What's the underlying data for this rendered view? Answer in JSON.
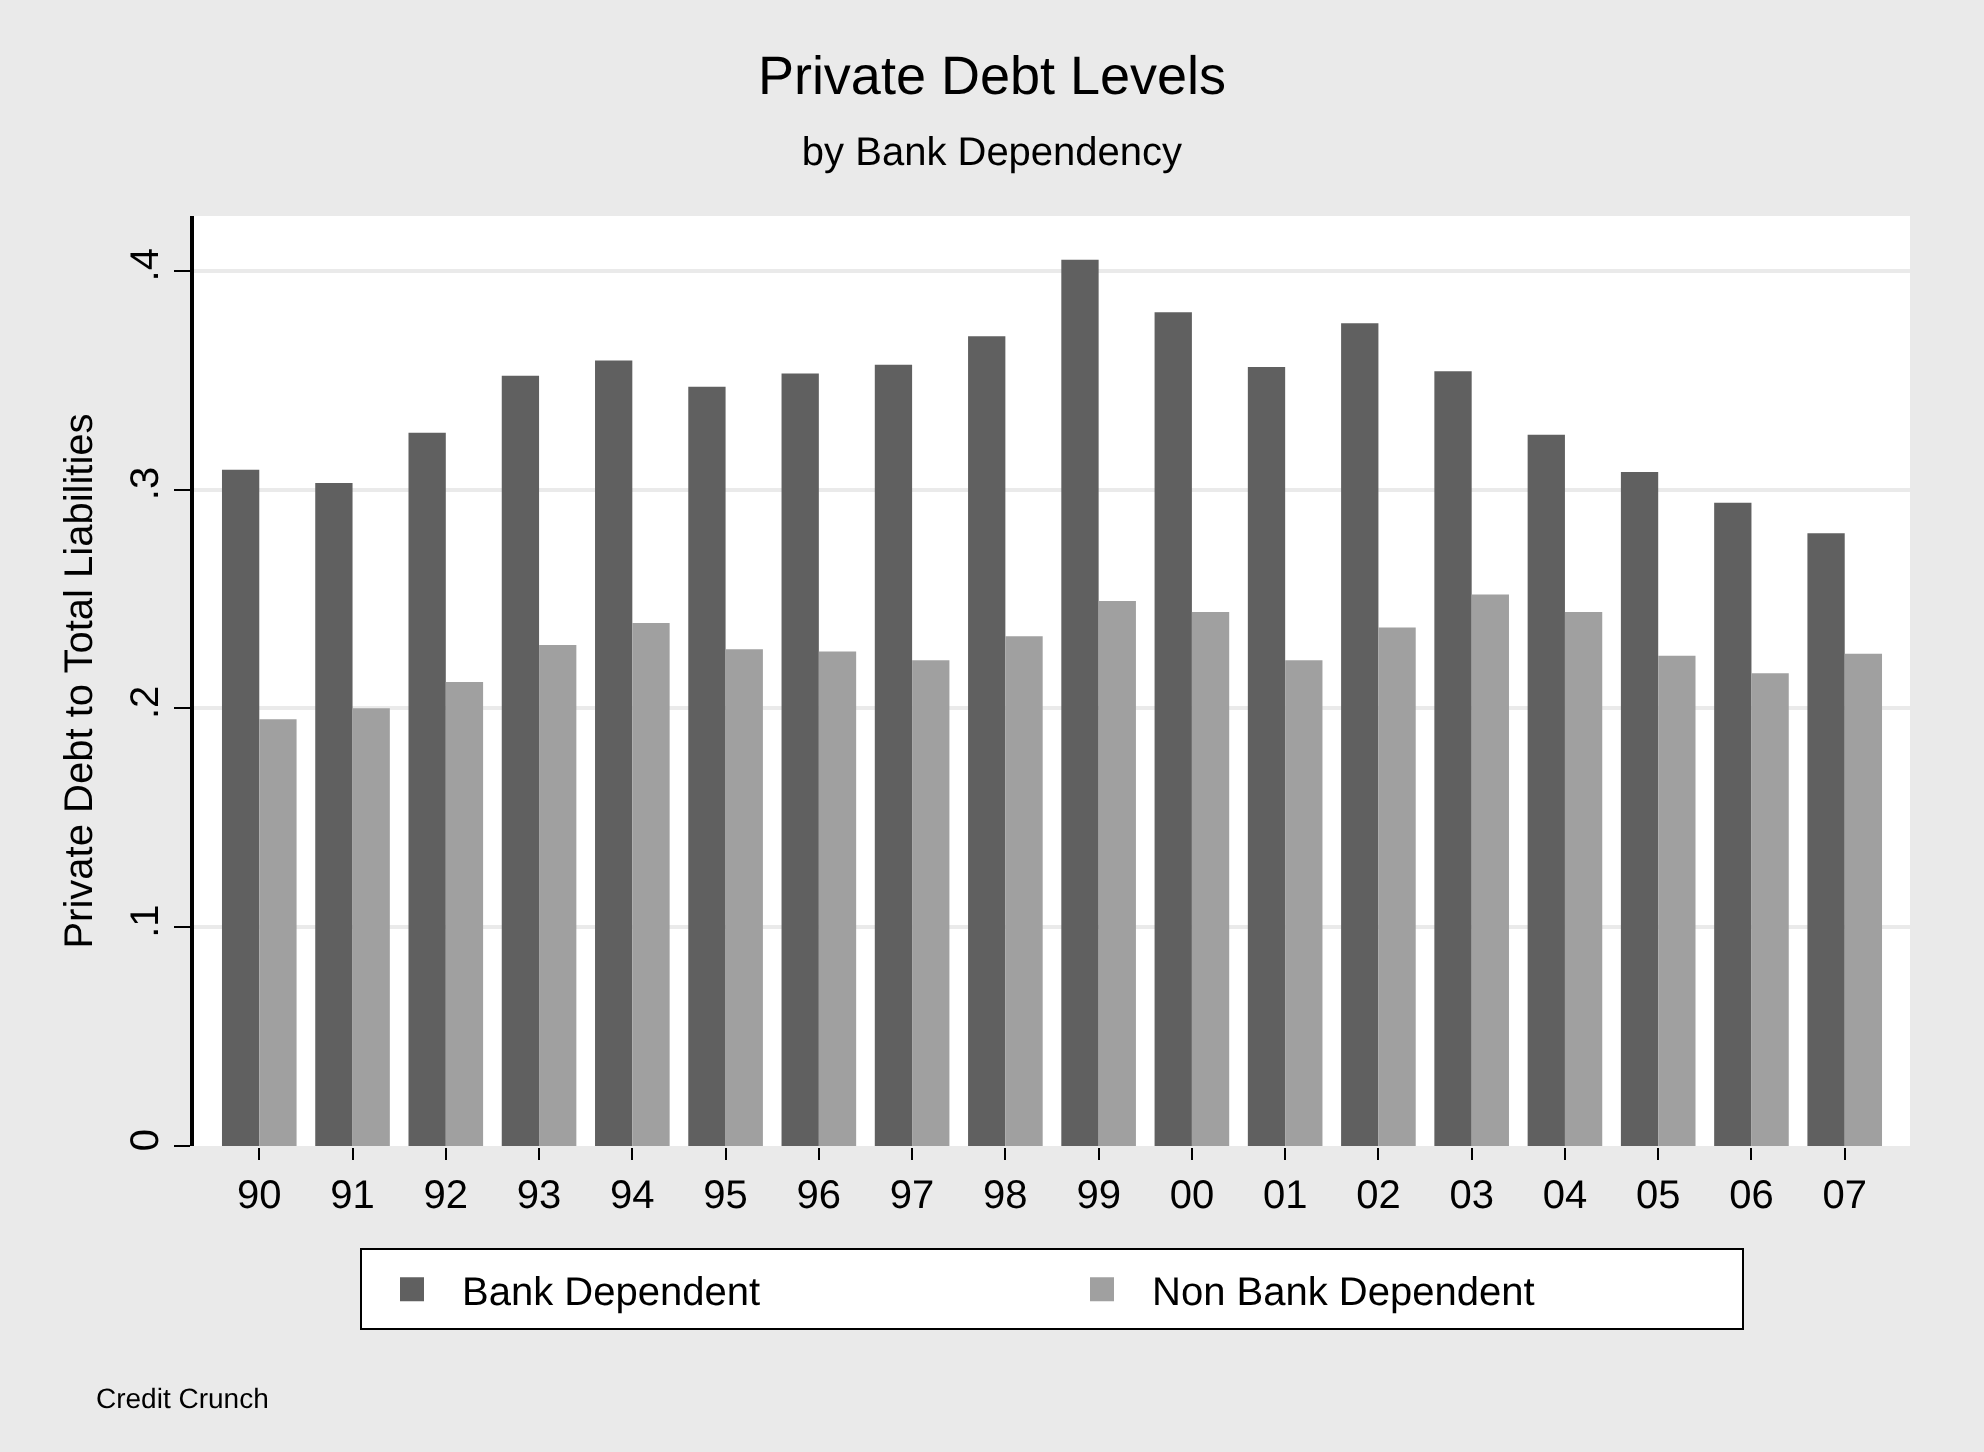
{
  "chart_data": {
    "type": "bar",
    "title": "Private Debt Levels",
    "subtitle": "by Bank Dependency",
    "ylabel": "Private Debt to Total Liabilities",
    "categories": [
      "90",
      "91",
      "92",
      "93",
      "94",
      "95",
      "96",
      "97",
      "98",
      "99",
      "00",
      "01",
      "02",
      "03",
      "04",
      "05",
      "06",
      "07"
    ],
    "series": [
      {
        "name": "Bank Dependent",
        "color": "#606060",
        "values": [
          0.309,
          0.303,
          0.326,
          0.352,
          0.359,
          0.347,
          0.353,
          0.357,
          0.37,
          0.405,
          0.381,
          0.356,
          0.376,
          0.354,
          0.325,
          0.308,
          0.294,
          0.28
        ]
      },
      {
        "name": "Non Bank Dependent",
        "color": "#a0a0a0",
        "values": [
          0.195,
          0.2,
          0.212,
          0.229,
          0.239,
          0.227,
          0.226,
          0.222,
          0.233,
          0.249,
          0.244,
          0.222,
          0.237,
          0.252,
          0.244,
          0.224,
          0.216,
          0.225
        ]
      }
    ],
    "ylim": [
      0,
      0.425
    ],
    "yticks": [
      0,
      {
        "value": 0.1,
        "label": ".1"
      },
      {
        "value": 0.2,
        "label": ".2"
      },
      {
        "value": 0.3,
        "label": ".3"
      },
      {
        "value": 0.4,
        "label": ".4"
      }
    ],
    "grid": "y",
    "legend": "bottom",
    "annotations": [
      "Credit Crunch"
    ]
  }
}
